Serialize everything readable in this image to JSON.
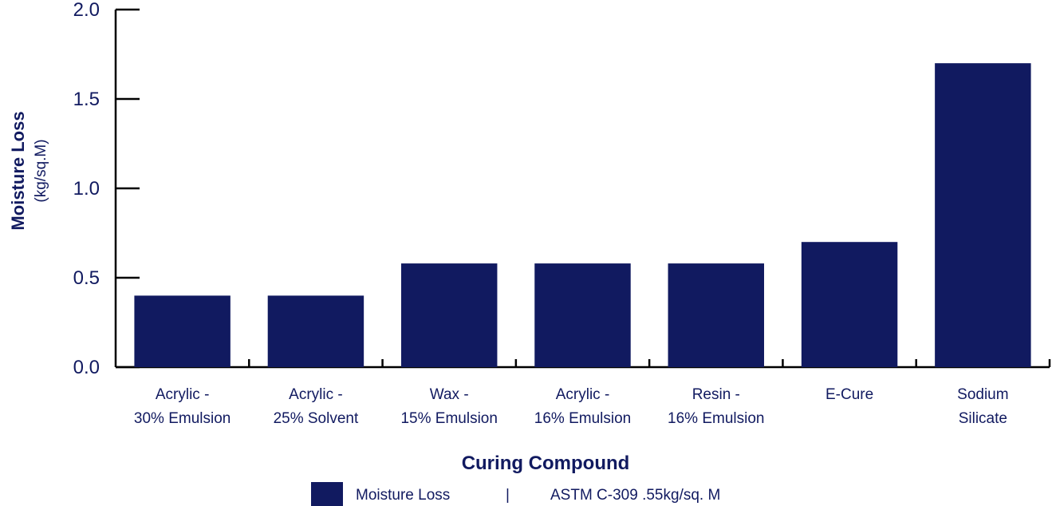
{
  "colors": {
    "bar": "#111a60",
    "text": "#111a60",
    "axis": "#000000",
    "background": "#ffffff"
  },
  "chart_data": {
    "type": "bar",
    "xlabel": "Curing Compound",
    "ylabel": "Moisture Loss",
    "ylabel_unit": "(kg/sq.M)",
    "ylim": [
      0,
      2.0
    ],
    "yticks": [
      "0.0",
      "0.5",
      "1.0",
      "1.5",
      "2.0"
    ],
    "ytick_values": [
      0,
      0.5,
      1.0,
      1.5,
      2.0
    ],
    "grid": false,
    "legend_position": "bottom",
    "categories": [
      [
        "Acrylic -",
        "30% Emulsion"
      ],
      [
        "Acrylic -",
        "25% Solvent"
      ],
      [
        "Wax -",
        "15% Emulsion"
      ],
      [
        "Acrylic -",
        "16% Emulsion"
      ],
      [
        "Resin -",
        "16% Emulsion"
      ],
      [
        "E-Cure"
      ],
      [
        "Sodium",
        "Silicate"
      ]
    ],
    "series": [
      {
        "name": "Moisture Loss",
        "values": [
          0.4,
          0.4,
          0.58,
          0.58,
          0.58,
          0.7,
          1.7
        ]
      }
    ]
  },
  "legend": {
    "label": "Moisture Loss",
    "separator": "|",
    "note": "ASTM C-309 .55kg/sq. M"
  }
}
